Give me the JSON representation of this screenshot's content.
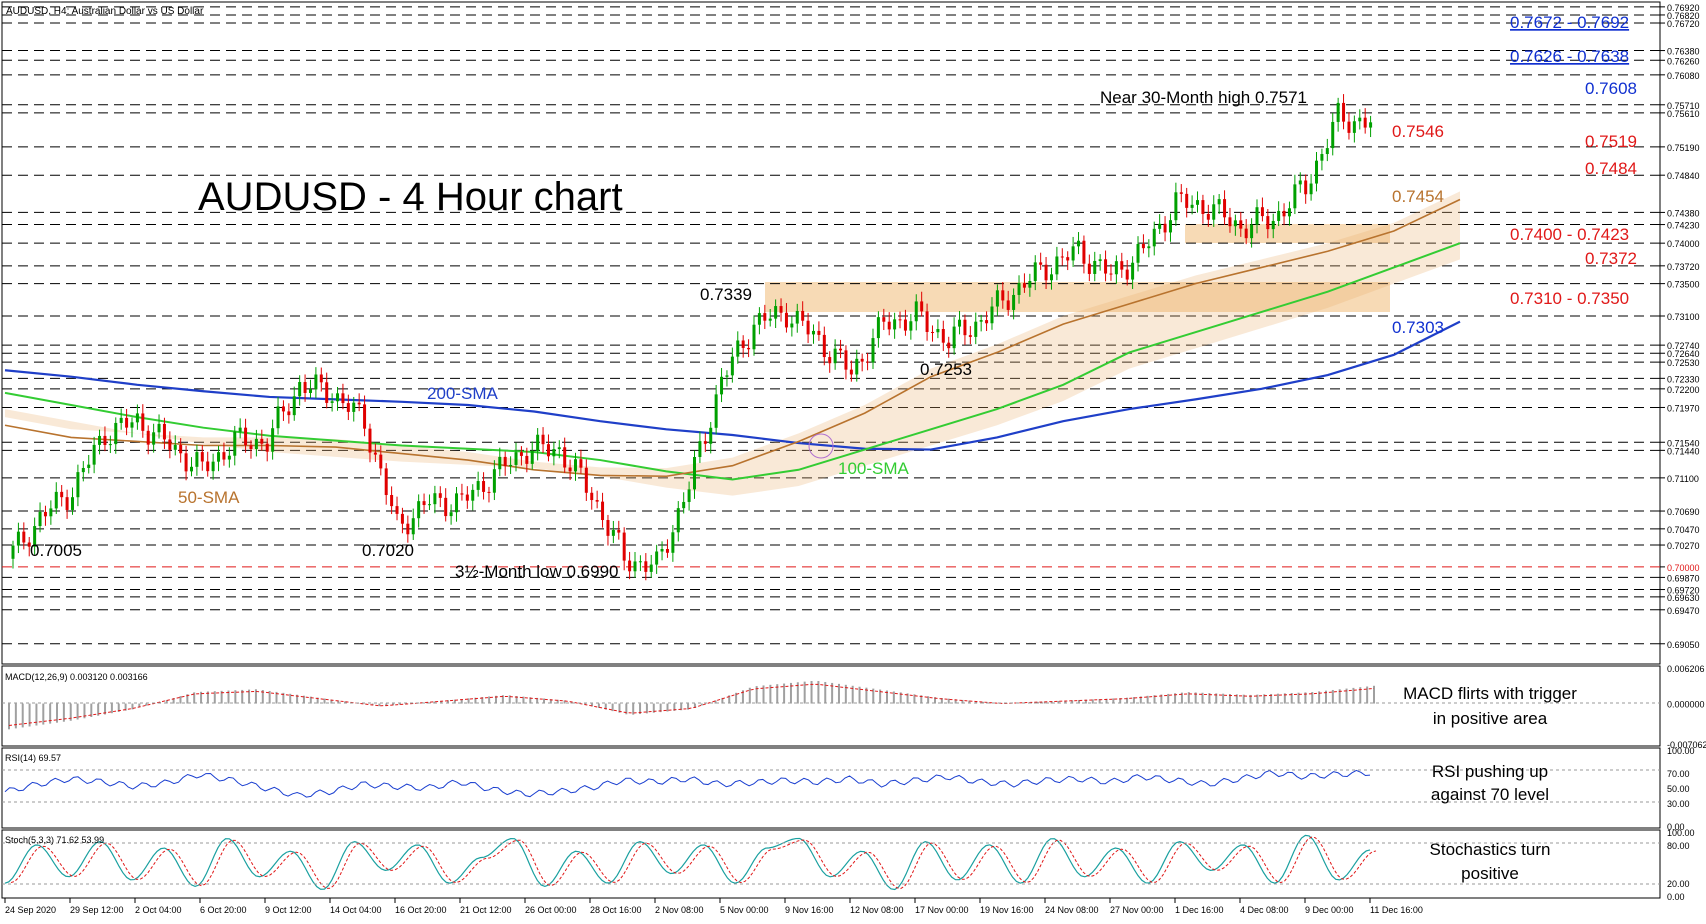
{
  "colors": {
    "price_up": "#00a000",
    "price_down": "#e00000",
    "sma200": "#1f3fc8",
    "sma100": "#33cc33",
    "sma50": "#b8732e",
    "kijun": "#1a3fd0",
    "tenkan": "#e02020",
    "chikou": "#33cc33",
    "cloud": "#e8b070",
    "zone": "#f6d3a8",
    "blue_label": "#1030d0",
    "red_label": "#e01818",
    "brown_label": "#b8732e",
    "green_label": "#33cc33"
  },
  "header": {
    "title": "AUDUSD, H4:  Australian Dollar vs US Dollar",
    "chart_heading": "AUDUSD - 4 Hour chart"
  },
  "chart_data": [
    {
      "type": "line",
      "title": "AUDUSD, H4:  Australian Dollar vs US Dollar",
      "x_labels": [
        "24 Sep 2020",
        "29 Sep 12:00",
        "2 Oct 04:00",
        "6 Oct 20:00",
        "9 Oct 12:00",
        "14 Oct 04:00",
        "16 Oct 20:00",
        "21 Oct 12:00",
        "26 Oct 00:00",
        "28 Oct 16:00",
        "2 Nov 08:00",
        "5 Nov 00:00",
        "9 Nov 16:00",
        "12 Nov 08:00",
        "17 Nov 00:00",
        "19 Nov 16:00",
        "24 Nov 08:00",
        "27 Nov 00:00",
        "1 Dec 16:00",
        "4 Dec 08:00",
        "9 Dec 00:00",
        "11 Dec 16:00"
      ],
      "y_ticks": [
        "0.76920",
        "0.76820",
        "0.76720",
        "0.76380",
        "0.76260",
        "0.76080",
        "0.75710",
        "0.75610",
        "0.75190",
        "0.74840",
        "0.74380",
        "0.74230",
        "0.74000",
        "0.73720",
        "0.73500",
        "0.73100",
        "0.72740",
        "0.72640",
        "0.72530",
        "0.72330",
        "0.72200",
        "0.71970",
        "0.71540",
        "0.71440",
        "0.71100",
        "0.70690",
        "0.70470",
        "0.70270",
        "0.70000",
        "0.69870",
        "0.69720",
        "0.69630",
        "0.69470",
        "0.69050"
      ],
      "ylim": [
        0.688,
        0.7698
      ],
      "series": [
        {
          "name": "Close",
          "values": [
            0.701,
            0.706,
            0.7095,
            0.7165,
            0.718,
            0.715,
            0.712,
            0.7155,
            0.7155,
            0.7225,
            0.7215,
            0.718,
            0.705,
            0.708,
            0.708,
            0.7115,
            0.7145,
            0.7145,
            0.709,
            0.701,
            0.7,
            0.71,
            0.723,
            0.73,
            0.7315,
            0.728,
            0.724,
            0.73,
            0.731,
            0.728,
            0.7305,
            0.734,
            0.737,
            0.739,
            0.736,
            0.739,
            0.745,
            0.7445,
            0.742,
            0.743,
            0.747,
            0.7555,
            0.7548
          ]
        },
        {
          "name": "200-SMA",
          "values": [
            0.7243,
            0.7235,
            0.7225,
            0.7217,
            0.721,
            0.7207,
            0.7204,
            0.72,
            0.7192,
            0.718,
            0.717,
            0.7163,
            0.7153,
            0.7146,
            0.7145,
            0.716,
            0.718,
            0.7195,
            0.7207,
            0.722,
            0.7237,
            0.7262,
            0.7303
          ]
        },
        {
          "name": "100-SMA",
          "values": [
            0.7215,
            0.72,
            0.7185,
            0.7172,
            0.7162,
            0.7156,
            0.715,
            0.7146,
            0.7142,
            0.7132,
            0.7118,
            0.7108,
            0.712,
            0.7145,
            0.717,
            0.7195,
            0.7225,
            0.7265,
            0.729,
            0.7315,
            0.734,
            0.737,
            0.74
          ]
        },
        {
          "name": "50-SMA",
          "values": [
            0.7175,
            0.716,
            0.7155,
            0.715,
            0.715,
            0.7148,
            0.714,
            0.7132,
            0.712,
            0.7113,
            0.7112,
            0.7125,
            0.7155,
            0.719,
            0.7235,
            0.7265,
            0.73,
            0.7325,
            0.735,
            0.737,
            0.739,
            0.7415,
            0.7454
          ]
        }
      ]
    },
    {
      "type": "bar",
      "title": "MACD(12,26,9) 0.003120 0.003166",
      "y_ticks": [
        "0.006206",
        "0.000000",
        "-0.007062"
      ],
      "ylim": [
        -0.007062,
        0.006206
      ],
      "series": [
        {
          "name": "MACD",
          "values": [
            -0.0045,
            -0.003,
            -0.001,
            0.002,
            0.0025,
            0.001,
            -0.0005,
            0.0005,
            0.0015,
            0.0005,
            -0.002,
            -0.001,
            0.003,
            0.004,
            0.0025,
            0.001,
            0.0,
            0.0005,
            0.001,
            0.002,
            0.0015,
            0.002,
            0.0031
          ]
        }
      ]
    },
    {
      "type": "line",
      "title": "RSI(14) 69.57",
      "y_ticks": [
        "100.00",
        "70.00",
        "50.00",
        "30.00",
        "0.00"
      ],
      "ylim": [
        0,
        100
      ],
      "series": [
        {
          "name": "RSI",
          "values": [
            45,
            55,
            62,
            58,
            52,
            57,
            68,
            60,
            50,
            40,
            45,
            55,
            52,
            50,
            58,
            48,
            42,
            45,
            50,
            60,
            58,
            62,
            55,
            57,
            60,
            58,
            62,
            55,
            60,
            65,
            58,
            55,
            60,
            62,
            58,
            65,
            60,
            55,
            62,
            70,
            65,
            68,
            70
          ]
        }
      ]
    },
    {
      "type": "line",
      "title": "Stoch(5,3,3) 71.62 53.99",
      "y_ticks": [
        "100.00",
        "80.00",
        "20.00",
        "0.00"
      ],
      "ylim": [
        0,
        100
      ],
      "series": [
        {
          "name": "Stoch",
          "values": [
            20,
            80,
            30,
            85,
            25,
            75,
            15,
            90,
            30,
            70,
            10,
            85,
            40,
            80,
            20,
            60,
            90,
            15,
            70,
            20,
            85,
            35,
            80,
            20,
            75,
            90,
            30,
            70,
            10,
            85,
            25,
            80,
            20,
            90,
            30,
            75,
            20,
            85,
            40,
            80,
            20,
            95,
            25,
            72
          ]
        }
      ]
    }
  ],
  "levels": [
    {
      "text": "0.7672 - 0.7692",
      "type": "blue"
    },
    {
      "text": "0.7626 - 0.7638",
      "type": "blue"
    },
    {
      "text": "0.7608",
      "type": "blue"
    },
    {
      "text": "0.7546",
      "type": "red"
    },
    {
      "text": "0.7519",
      "type": "red"
    },
    {
      "text": "0.7484",
      "type": "red"
    },
    {
      "text": "0.7454",
      "type": "brown"
    },
    {
      "text": "0.7400 - 0.7423",
      "type": "red"
    },
    {
      "text": "0.7372",
      "type": "red"
    },
    {
      "text": "0.7310 - 0.7350",
      "type": "red"
    },
    {
      "text": "0.7303",
      "type": "blue"
    }
  ],
  "annotations": {
    "high": "Near 30-Month high 0.7571",
    "p7339": "0.7339",
    "p7253": "0.7253",
    "p7005": "0.7005",
    "p7020": "0.7020",
    "low": "3½-Month low 0.6990",
    "sma200": "200-SMA",
    "sma100": "100-SMA",
    "sma50": "50-SMA"
  },
  "comments": {
    "macd": [
      "MACD flirts with trigger",
      "in positive area"
    ],
    "rsi": [
      "RSI pushing up",
      "against 70 level"
    ],
    "stoch": [
      "Stochastics turn",
      "positive"
    ]
  }
}
